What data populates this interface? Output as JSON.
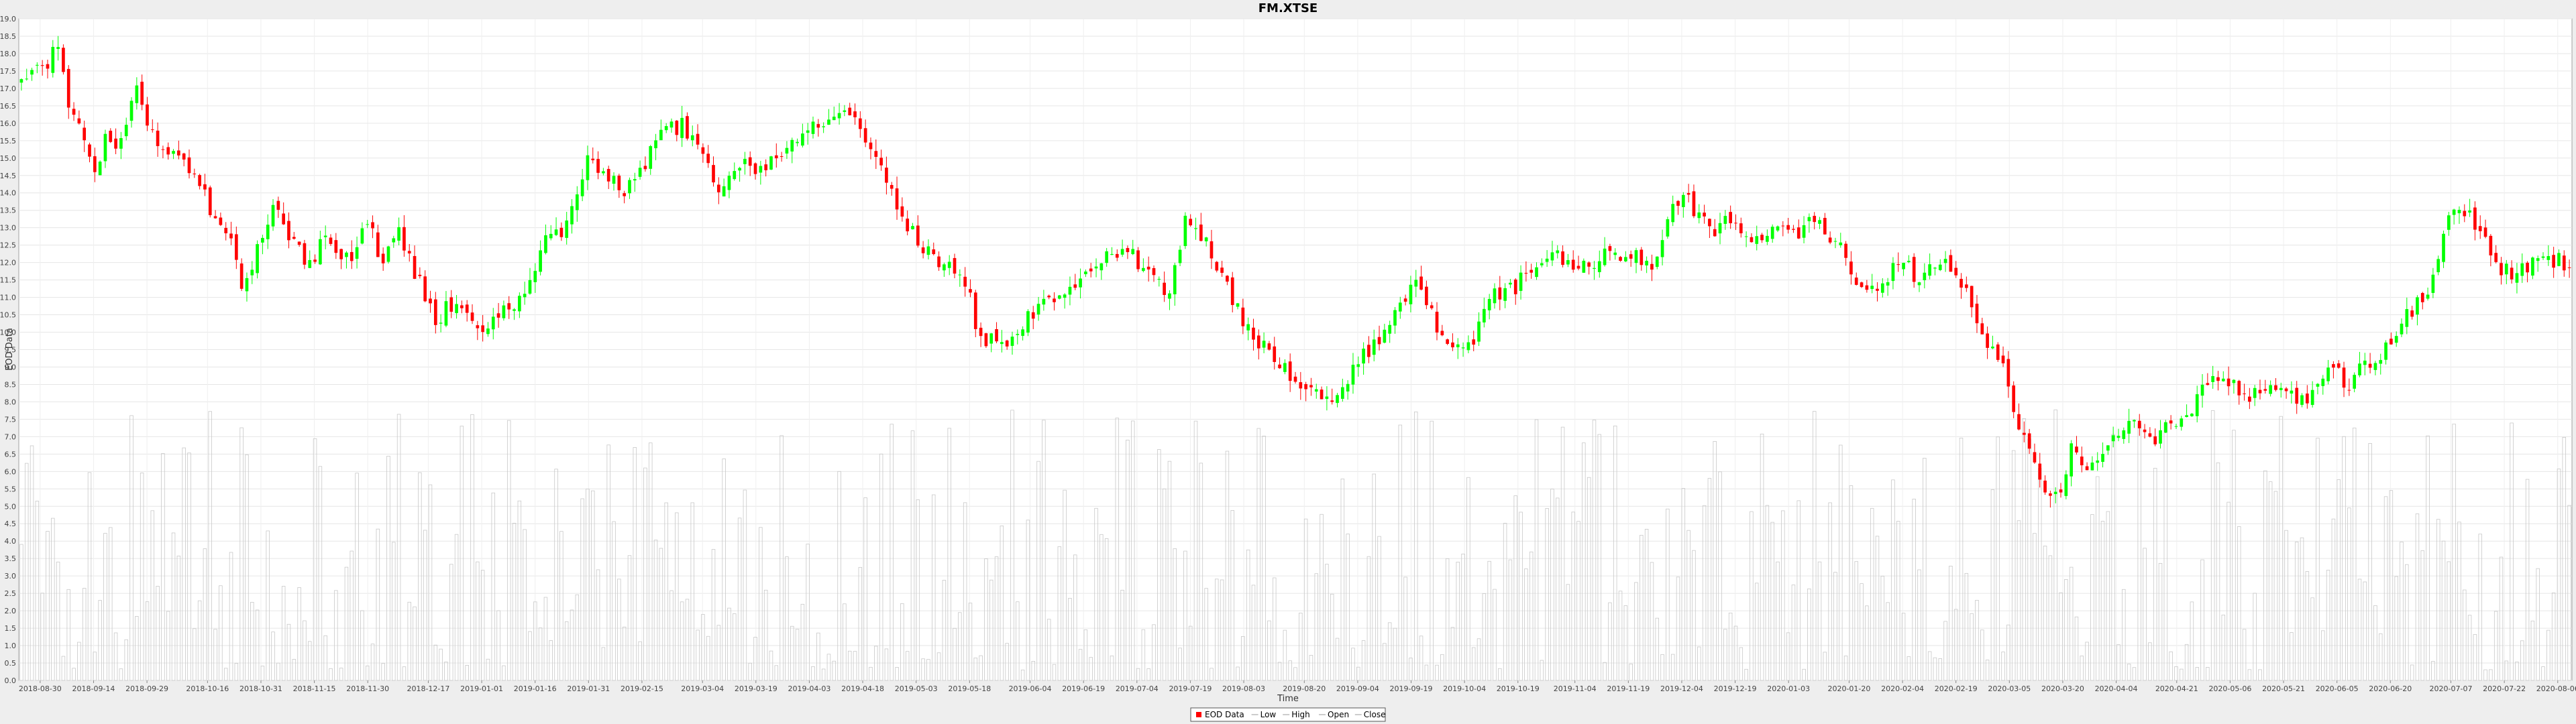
{
  "chart_data": {
    "type": "candlestick",
    "title": "FM.XTSE",
    "xlabel": "Time",
    "ylabel": "EOD Data",
    "ylim": [
      0.0,
      19.0
    ],
    "y_ticks": [
      "0.0",
      "0.5",
      "1.0",
      "1.5",
      "2.0",
      "2.5",
      "3.0",
      "3.5",
      "4.0",
      "4.5",
      "5.0",
      "5.5",
      "6.0",
      "6.5",
      "7.0",
      "7.5",
      "8.0",
      "8.5",
      "9.0",
      "9.5",
      "10.0",
      "10.5",
      "11.0",
      "11.5",
      "12.0",
      "12.5",
      "13.0",
      "13.5",
      "14.0",
      "14.5",
      "15.0",
      "15.5",
      "16.0",
      "16.5",
      "17.0",
      "17.5",
      "18.0",
      "18.5",
      "19.0"
    ],
    "x_ticks": [
      "2018-08-30",
      "2018-09-14",
      "2018-09-29",
      "2018-10-16",
      "2018-10-31",
      "2018-11-15",
      "2018-11-30",
      "2018-12-17",
      "2019-01-01",
      "2019-01-16",
      "2019-01-31",
      "2019-02-15",
      "2019-03-04",
      "2019-03-19",
      "2019-04-03",
      "2019-04-18",
      "2019-05-03",
      "2019-05-18",
      "2019-06-04",
      "2019-06-19",
      "2019-07-04",
      "2019-07-19",
      "2019-08-03",
      "2019-08-20",
      "2019-09-04",
      "2019-09-19",
      "2019-10-04",
      "2019-10-19",
      "2019-11-04",
      "2019-11-19",
      "2019-12-04",
      "2019-12-19",
      "2020-01-03",
      "2020-01-20",
      "2020-02-04",
      "2020-02-19",
      "2020-03-05",
      "2020-03-20",
      "2020-04-04",
      "2020-04-21",
      "2020-05-06",
      "2020-05-21",
      "2020-06-05",
      "2020-06-20",
      "2020-07-07",
      "2020-07-22",
      "2020-08-06"
    ],
    "x_range": [
      "2018-08-24",
      "2020-08-10"
    ],
    "series": [
      {
        "name": "EOD Data",
        "color": "#ff0000"
      },
      {
        "name": "Low"
      },
      {
        "name": "High"
      },
      {
        "name": "Open"
      },
      {
        "name": "Close"
      }
    ],
    "up_color": "#00ff00",
    "down_color": "#ff0000",
    "volume_color": "#c8c8c8",
    "close_path": [
      [
        "2018-08-24",
        17.2
      ],
      [
        "2018-08-31",
        17.6
      ],
      [
        "2018-09-04",
        18.1
      ],
      [
        "2018-09-07",
        16.6
      ],
      [
        "2018-09-11",
        15.4
      ],
      [
        "2018-09-14",
        14.6
      ],
      [
        "2018-09-18",
        15.7
      ],
      [
        "2018-09-22",
        15.4
      ],
      [
        "2018-09-26",
        17.4
      ],
      [
        "2018-09-29",
        16.2
      ],
      [
        "2018-10-03",
        15.0
      ],
      [
        "2018-10-08",
        14.9
      ],
      [
        "2018-10-12",
        14.5
      ],
      [
        "2018-10-17",
        13.5
      ],
      [
        "2018-10-22",
        12.8
      ],
      [
        "2018-10-26",
        11.0
      ],
      [
        "2018-10-31",
        12.8
      ],
      [
        "2018-11-04",
        13.6
      ],
      [
        "2018-11-09",
        12.6
      ],
      [
        "2018-11-14",
        12.0
      ],
      [
        "2018-11-19",
        12.8
      ],
      [
        "2018-11-25",
        12.0
      ],
      [
        "2018-11-30",
        13.2
      ],
      [
        "2018-12-04",
        12.0
      ],
      [
        "2018-12-09",
        12.8
      ],
      [
        "2018-12-14",
        11.5
      ],
      [
        "2018-12-19",
        10.3
      ],
      [
        "2018-12-25",
        11.0
      ],
      [
        "2019-01-01",
        10.2
      ],
      [
        "2019-01-07",
        10.5
      ],
      [
        "2019-01-13",
        11.0
      ],
      [
        "2019-01-18",
        12.5
      ],
      [
        "2019-01-24",
        13.0
      ],
      [
        "2019-01-31",
        15.2
      ],
      [
        "2019-02-05",
        14.5
      ],
      [
        "2019-02-10",
        13.9
      ],
      [
        "2019-02-15",
        14.8
      ],
      [
        "2019-02-21",
        15.7
      ],
      [
        "2019-02-26",
        16.0
      ],
      [
        "2019-03-02",
        15.5
      ],
      [
        "2019-03-08",
        14.2
      ],
      [
        "2019-03-14",
        14.8
      ],
      [
        "2019-03-20",
        14.5
      ],
      [
        "2019-03-26",
        15.1
      ],
      [
        "2019-04-01",
        15.7
      ],
      [
        "2019-04-07",
        16.0
      ],
      [
        "2019-04-12",
        16.3
      ],
      [
        "2019-04-18",
        15.8
      ],
      [
        "2019-04-24",
        14.7
      ],
      [
        "2019-04-30",
        13.2
      ],
      [
        "2019-05-05",
        12.4
      ],
      [
        "2019-05-10",
        12.0
      ],
      [
        "2019-05-16",
        11.8
      ],
      [
        "2019-05-20",
        10.2
      ],
      [
        "2019-05-24",
        9.7
      ],
      [
        "2019-05-30",
        9.9
      ],
      [
        "2019-06-04",
        10.4
      ],
      [
        "2019-06-10",
        10.9
      ],
      [
        "2019-06-16",
        11.3
      ],
      [
        "2019-06-22",
        12.0
      ],
      [
        "2019-06-26",
        12.3
      ],
      [
        "2019-07-02",
        12.4
      ],
      [
        "2019-07-08",
        11.5
      ],
      [
        "2019-07-13",
        11.1
      ],
      [
        "2019-07-18",
        13.3
      ],
      [
        "2019-07-24",
        12.6
      ],
      [
        "2019-07-29",
        11.4
      ],
      [
        "2019-08-02",
        10.5
      ],
      [
        "2019-08-07",
        9.7
      ],
      [
        "2019-08-12",
        9.3
      ],
      [
        "2019-08-17",
        8.7
      ],
      [
        "2019-08-22",
        8.3
      ],
      [
        "2019-08-27",
        8.1
      ],
      [
        "2019-09-01",
        8.7
      ],
      [
        "2019-09-06",
        9.4
      ],
      [
        "2019-09-11",
        10.0
      ],
      [
        "2019-09-16",
        10.6
      ],
      [
        "2019-09-21",
        11.5
      ],
      [
        "2019-09-26",
        10.1
      ],
      [
        "2019-10-01",
        9.7
      ],
      [
        "2019-10-06",
        9.6
      ],
      [
        "2019-10-12",
        11.1
      ],
      [
        "2019-10-18",
        11.3
      ],
      [
        "2019-10-24",
        11.8
      ],
      [
        "2019-10-29",
        12.4
      ],
      [
        "2019-11-03",
        11.8
      ],
      [
        "2019-11-08",
        12.0
      ],
      [
        "2019-11-14",
        12.3
      ],
      [
        "2019-11-20",
        12.2
      ],
      [
        "2019-11-26",
        11.8
      ],
      [
        "2019-12-01",
        13.4
      ],
      [
        "2019-12-06",
        13.8
      ],
      [
        "2019-12-12",
        12.9
      ],
      [
        "2019-12-18",
        13.2
      ],
      [
        "2019-12-24",
        12.6
      ],
      [
        "2019-12-30",
        13.1
      ],
      [
        "2020-01-04",
        12.7
      ],
      [
        "2020-01-10",
        13.2
      ],
      [
        "2020-01-16",
        12.6
      ],
      [
        "2020-01-20",
        12.0
      ],
      [
        "2020-01-24",
        11.0
      ],
      [
        "2020-01-30",
        11.5
      ],
      [
        "2020-02-04",
        12.0
      ],
      [
        "2020-02-08",
        11.5
      ],
      [
        "2020-02-13",
        11.9
      ],
      [
        "2020-02-18",
        12.0
      ],
      [
        "2020-02-23",
        10.9
      ],
      [
        "2020-02-27",
        9.6
      ],
      [
        "2020-03-03",
        9.2
      ],
      [
        "2020-03-07",
        7.4
      ],
      [
        "2020-03-11",
        6.8
      ],
      [
        "2020-03-15",
        5.6
      ],
      [
        "2020-03-19",
        5.2
      ],
      [
        "2020-03-23",
        6.8
      ],
      [
        "2020-03-27",
        6.0
      ],
      [
        "2020-03-31",
        6.6
      ],
      [
        "2020-04-04",
        7.2
      ],
      [
        "2020-04-09",
        7.4
      ],
      [
        "2020-04-14",
        6.9
      ],
      [
        "2020-04-19",
        7.4
      ],
      [
        "2020-04-24",
        7.4
      ],
      [
        "2020-04-29",
        8.7
      ],
      [
        "2020-05-04",
        8.6
      ],
      [
        "2020-05-09",
        8.3
      ],
      [
        "2020-05-14",
        8.1
      ],
      [
        "2020-05-19",
        8.6
      ],
      [
        "2020-05-24",
        8.2
      ],
      [
        "2020-05-29",
        8.2
      ],
      [
        "2020-06-03",
        9.1
      ],
      [
        "2020-06-08",
        8.5
      ],
      [
        "2020-06-13",
        9.0
      ],
      [
        "2020-06-18",
        9.4
      ],
      [
        "2020-06-23",
        10.2
      ],
      [
        "2020-06-28",
        10.8
      ],
      [
        "2020-07-03",
        11.8
      ],
      [
        "2020-07-07",
        13.4
      ],
      [
        "2020-07-11",
        13.6
      ],
      [
        "2020-07-16",
        12.8
      ],
      [
        "2020-07-21",
        11.9
      ],
      [
        "2020-07-26",
        11.6
      ],
      [
        "2020-07-31",
        12.2
      ],
      [
        "2020-08-05",
        12.1
      ],
      [
        "2020-08-10",
        11.9
      ]
    ],
    "candle_count": 487,
    "candle_seed": 20180830,
    "volume_range": [
      0.3,
      7.8
    ]
  },
  "legend": {
    "items": [
      {
        "label": "EOD Data"
      },
      {
        "label": "Low"
      },
      {
        "label": "High"
      },
      {
        "label": "Open"
      },
      {
        "label": "Close"
      }
    ]
  }
}
